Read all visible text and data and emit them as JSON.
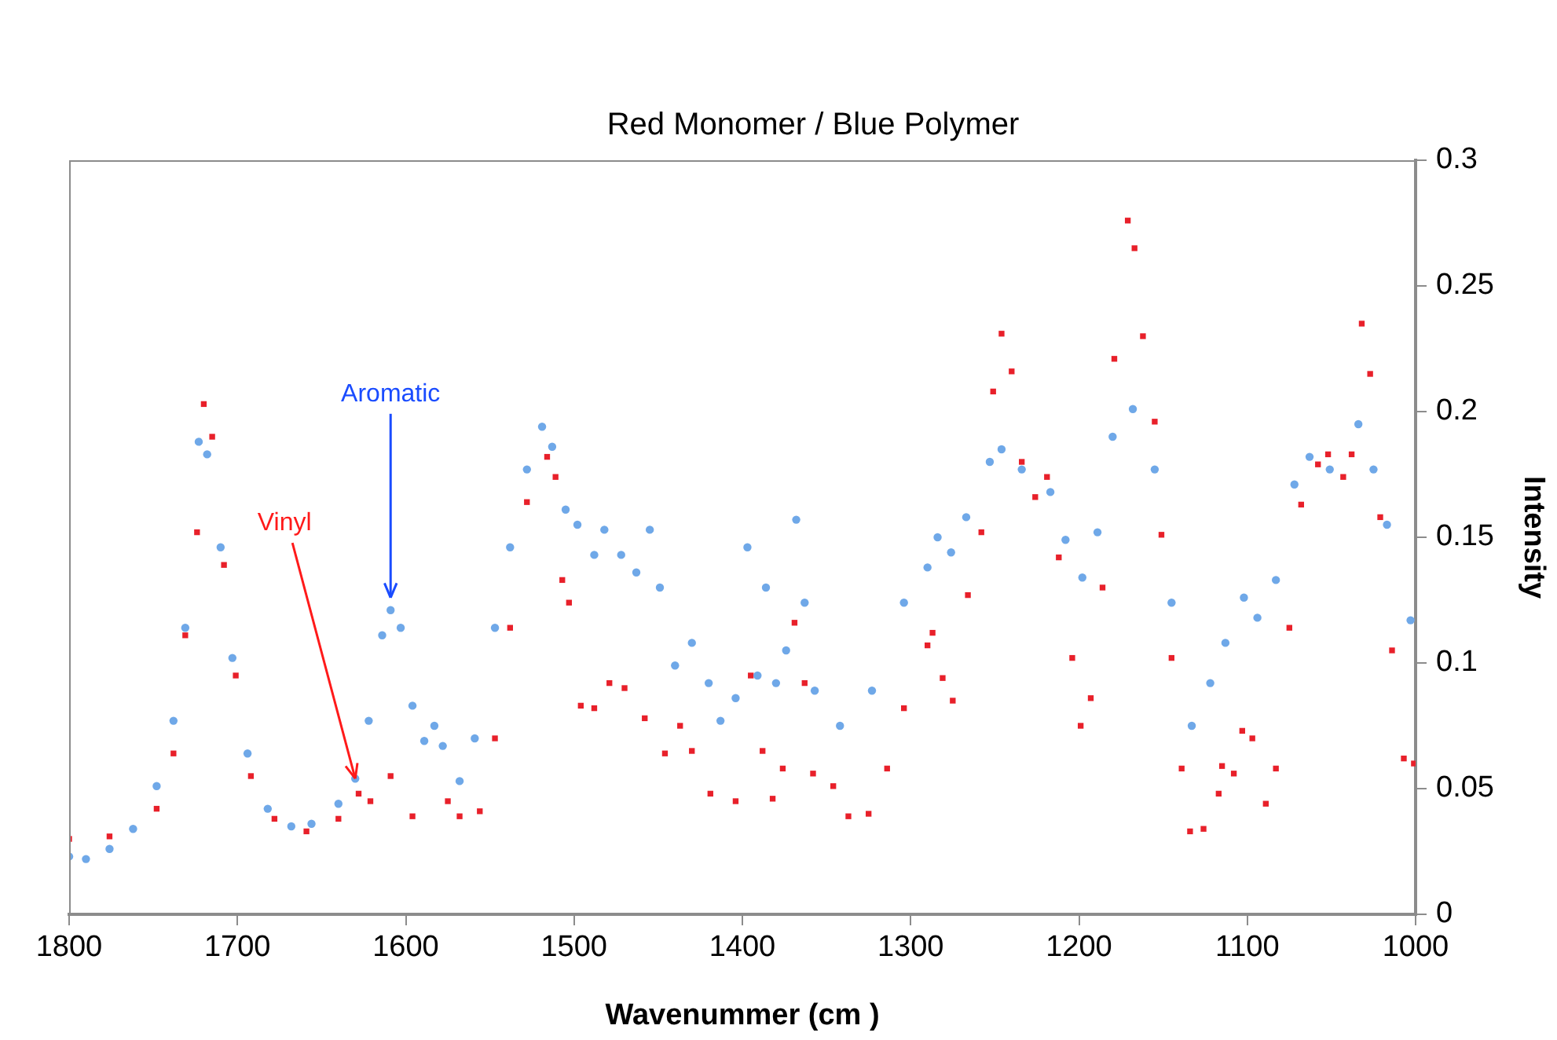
{
  "chart_data": {
    "type": "scatter",
    "title": "Red Monomer / Blue Polymer",
    "xlabel": "Wavenummer (cm )",
    "ylabel": "Intensity",
    "xlim": [
      1800,
      1000
    ],
    "xticks": [
      1800,
      1700,
      1600,
      1500,
      1400,
      1300,
      1200,
      1100,
      1000
    ],
    "ylim": [
      0,
      0.3
    ],
    "yticks": [
      0,
      0.05,
      0.1,
      0.15,
      0.2,
      0.25,
      0.3
    ],
    "grid": false,
    "legend": false,
    "annotations": [
      {
        "text": "Aromatic",
        "x": 1609,
        "y": 0.121
      },
      {
        "text": "Vinyl",
        "x": 1630,
        "y": 0.054
      }
    ],
    "series": [
      {
        "color": "#6fa8e8",
        "marker": "circle",
        "x": [
          1800,
          1790,
          1776,
          1762,
          1748,
          1738,
          1731,
          1723,
          1718,
          1710,
          1703,
          1694,
          1682,
          1668,
          1656,
          1640,
          1630,
          1622,
          1614,
          1609,
          1603,
          1596,
          1589,
          1583,
          1578,
          1568,
          1559,
          1547,
          1538,
          1528,
          1519,
          1513,
          1505,
          1498,
          1488,
          1482,
          1472,
          1463,
          1455,
          1449,
          1440,
          1430,
          1420,
          1413,
          1404,
          1397,
          1391,
          1386,
          1380,
          1374,
          1368,
          1363,
          1357,
          1342,
          1323,
          1304,
          1290,
          1284,
          1276,
          1267,
          1253,
          1246,
          1234,
          1217,
          1208,
          1198,
          1189,
          1180,
          1168,
          1155,
          1145,
          1133,
          1122,
          1113,
          1102,
          1094,
          1083,
          1072,
          1063,
          1051,
          1034,
          1025,
          1017,
          1003
        ],
        "values": [
          0.023,
          0.022,
          0.026,
          0.034,
          0.051,
          0.077,
          0.114,
          0.188,
          0.183,
          0.146,
          0.102,
          0.064,
          0.042,
          0.035,
          0.036,
          0.044,
          0.054,
          0.077,
          0.111,
          0.121,
          0.114,
          0.083,
          0.069,
          0.075,
          0.067,
          0.053,
          0.07,
          0.114,
          0.146,
          0.177,
          0.194,
          0.186,
          0.161,
          0.155,
          0.143,
          0.153,
          0.143,
          0.136,
          0.153,
          0.13,
          0.099,
          0.108,
          0.092,
          0.077,
          0.086,
          0.146,
          0.095,
          0.13,
          0.092,
          0.105,
          0.157,
          0.124,
          0.089,
          0.075,
          0.089,
          0.124,
          0.138,
          0.15,
          0.144,
          0.158,
          0.18,
          0.185,
          0.177,
          0.168,
          0.149,
          0.134,
          0.152,
          0.19,
          0.201,
          0.177,
          0.124,
          0.075,
          0.092,
          0.108,
          0.126,
          0.118,
          0.133,
          0.171,
          0.182,
          0.177,
          0.195,
          0.177,
          0.155,
          0.117
        ]
      },
      {
        "color": "#e8202a",
        "marker": "square",
        "x": [
          1800,
          1776,
          1748,
          1738,
          1731,
          1724,
          1720,
          1715,
          1708,
          1701,
          1692,
          1678,
          1659,
          1640,
          1628,
          1621,
          1609,
          1596,
          1575,
          1568,
          1556,
          1547,
          1538,
          1528,
          1516,
          1511,
          1507,
          1503,
          1496,
          1488,
          1479,
          1470,
          1458,
          1446,
          1437,
          1430,
          1419,
          1404,
          1395,
          1388,
          1382,
          1376,
          1369,
          1363,
          1358,
          1346,
          1337,
          1325,
          1314,
          1304,
          1290,
          1287,
          1281,
          1275,
          1266,
          1258,
          1251,
          1246,
          1240,
          1234,
          1226,
          1219,
          1212,
          1204,
          1199,
          1193,
          1186,
          1179,
          1171,
          1167,
          1162,
          1155,
          1151,
          1145,
          1139,
          1134,
          1126,
          1117,
          1115,
          1108,
          1103,
          1097,
          1089,
          1083,
          1075,
          1068,
          1058,
          1052,
          1043,
          1038,
          1032,
          1027,
          1021,
          1014,
          1007,
          1001
        ],
        "values": [
          0.03,
          0.031,
          0.042,
          0.064,
          0.111,
          0.152,
          0.203,
          0.19,
          0.139,
          0.095,
          0.055,
          0.038,
          0.033,
          0.038,
          0.048,
          0.045,
          0.055,
          0.039,
          0.045,
          0.039,
          0.041,
          0.07,
          0.114,
          0.164,
          0.182,
          0.174,
          0.133,
          0.124,
          0.083,
          0.082,
          0.092,
          0.09,
          0.078,
          0.064,
          0.075,
          0.065,
          0.048,
          0.045,
          0.095,
          0.065,
          0.046,
          0.058,
          0.116,
          0.092,
          0.056,
          0.051,
          0.039,
          0.04,
          0.058,
          0.082,
          0.107,
          0.112,
          0.094,
          0.085,
          0.127,
          0.152,
          0.208,
          0.231,
          0.216,
          0.18,
          0.166,
          0.174,
          0.142,
          0.102,
          0.075,
          0.086,
          0.13,
          0.221,
          0.276,
          0.265,
          0.23,
          0.196,
          0.151,
          0.102,
          0.058,
          0.033,
          0.034,
          0.048,
          0.059,
          0.056,
          0.073,
          0.07,
          0.044,
          0.058,
          0.114,
          0.163,
          0.179,
          0.183,
          0.174,
          0.183,
          0.235,
          0.215,
          0.158,
          0.105,
          0.062,
          0.06
        ]
      }
    ]
  }
}
